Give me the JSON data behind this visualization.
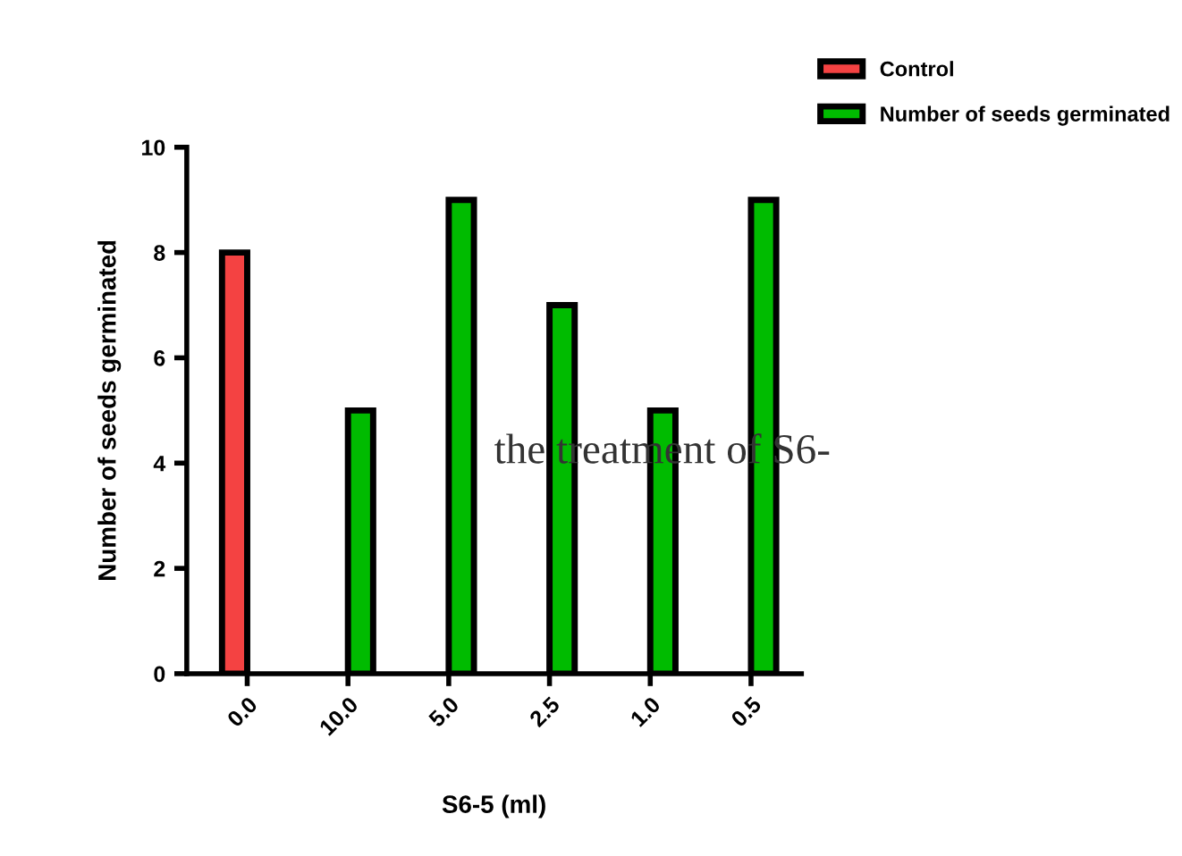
{
  "chart_data": {
    "type": "bar",
    "xlabel": "S6-5 (ml)",
    "ylabel": "Number of seeds germinated",
    "categories": [
      "0.0",
      "10.0",
      "5.0",
      "2.5",
      "1.0",
      "0.5"
    ],
    "series": [
      {
        "name": "Control",
        "color": "#f44242",
        "values": [
          8,
          null,
          null,
          null,
          null,
          null
        ]
      },
      {
        "name": "Number of seeds germinated",
        "color": "#00bb00",
        "values": [
          null,
          5,
          9,
          7,
          5,
          9
        ]
      }
    ],
    "ylim": [
      0,
      10
    ],
    "yticks": [
      0,
      2,
      4,
      6,
      8,
      10
    ],
    "grid": false,
    "legend": "top right",
    "annotations": [
      "the treatment of S6-"
    ]
  }
}
